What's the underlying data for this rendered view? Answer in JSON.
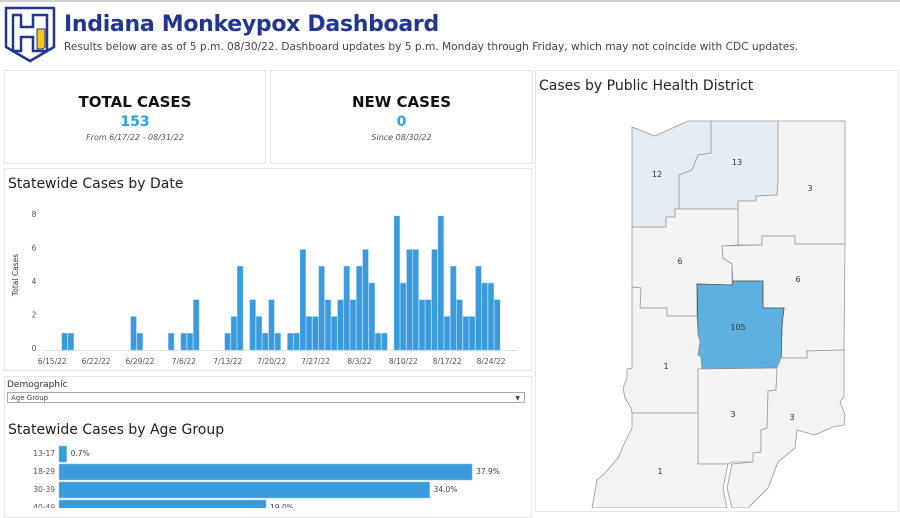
{
  "header": {
    "title": "Indiana Monkeypox Dashboard",
    "subtitle": "Results below are as of 5 p.m. 08/30/22. Dashboard updates by 5 p.m. Monday through Friday, which may not coincide with CDC updates.",
    "logo_text": "IN"
  },
  "kpis": {
    "total": {
      "label": "TOTAL CASES",
      "value": "153",
      "note": "From 6/17/22 - 08/31/22"
    },
    "new": {
      "label": "NEW CASES",
      "value": "0",
      "note": "Since 08/30/22"
    }
  },
  "colors": {
    "accent": "#29a3e0",
    "bar": "#3a9bdc",
    "title": "#23368f",
    "map_high": "#5eb0e0",
    "map_mid": "#e4ecf3",
    "map_low": "#f3f3f3"
  },
  "chart_data": [
    {
      "type": "bar",
      "title": "Statewide Cases by Date",
      "ylabel": "Total Cases",
      "xlabel": "",
      "ylim": [
        0,
        8
      ],
      "yticks": [
        "0",
        "2",
        "4",
        "6",
        "8"
      ],
      "xticks": [
        "6/15/22",
        "6/22/22",
        "6/29/22",
        "7/6/22",
        "7/13/22",
        "7/20/22",
        "7/27/22",
        "8/3/22",
        "8/10/22",
        "8/17/22",
        "8/24/22"
      ],
      "grid": false,
      "points": [
        {
          "date": "6/17/22",
          "cases": 1
        },
        {
          "date": "6/18/22",
          "cases": 1
        },
        {
          "date": "6/28/22",
          "cases": 2
        },
        {
          "date": "6/29/22",
          "cases": 1
        },
        {
          "date": "7/4/22",
          "cases": 1
        },
        {
          "date": "7/6/22",
          "cases": 1
        },
        {
          "date": "7/7/22",
          "cases": 1
        },
        {
          "date": "7/8/22",
          "cases": 3
        },
        {
          "date": "7/13/22",
          "cases": 1
        },
        {
          "date": "7/14/22",
          "cases": 2
        },
        {
          "date": "7/15/22",
          "cases": 5
        },
        {
          "date": "7/17/22",
          "cases": 3
        },
        {
          "date": "7/18/22",
          "cases": 2
        },
        {
          "date": "7/19/22",
          "cases": 1
        },
        {
          "date": "7/20/22",
          "cases": 3
        },
        {
          "date": "7/21/22",
          "cases": 1
        },
        {
          "date": "7/23/22",
          "cases": 1
        },
        {
          "date": "7/24/22",
          "cases": 1
        },
        {
          "date": "7/25/22",
          "cases": 6
        },
        {
          "date": "7/26/22",
          "cases": 2
        },
        {
          "date": "7/27/22",
          "cases": 2
        },
        {
          "date": "7/28/22",
          "cases": 5
        },
        {
          "date": "7/29/22",
          "cases": 3
        },
        {
          "date": "7/30/22",
          "cases": 2
        },
        {
          "date": "7/31/22",
          "cases": 3
        },
        {
          "date": "8/1/22",
          "cases": 5
        },
        {
          "date": "8/2/22",
          "cases": 3
        },
        {
          "date": "8/3/22",
          "cases": 5
        },
        {
          "date": "8/4/22",
          "cases": 6
        },
        {
          "date": "8/5/22",
          "cases": 4
        },
        {
          "date": "8/6/22",
          "cases": 1
        },
        {
          "date": "8/7/22",
          "cases": 1
        },
        {
          "date": "8/9/22",
          "cases": 8
        },
        {
          "date": "8/10/22",
          "cases": 4
        },
        {
          "date": "8/11/22",
          "cases": 6
        },
        {
          "date": "8/12/22",
          "cases": 6
        },
        {
          "date": "8/13/22",
          "cases": 3
        },
        {
          "date": "8/14/22",
          "cases": 3
        },
        {
          "date": "8/15/22",
          "cases": 6
        },
        {
          "date": "8/16/22",
          "cases": 8
        },
        {
          "date": "8/17/22",
          "cases": 2
        },
        {
          "date": "8/18/22",
          "cases": 5
        },
        {
          "date": "8/19/22",
          "cases": 3
        },
        {
          "date": "8/20/22",
          "cases": 2
        },
        {
          "date": "8/21/22",
          "cases": 2
        },
        {
          "date": "8/22/22",
          "cases": 5
        },
        {
          "date": "8/23/22",
          "cases": 4
        },
        {
          "date": "8/24/22",
          "cases": 4
        },
        {
          "date": "8/25/22",
          "cases": 3
        }
      ]
    },
    {
      "type": "bar",
      "orientation": "horizontal",
      "title": "Statewide Cases by Age Group",
      "categories": [
        "13-17",
        "18-29",
        "30-39",
        "40-49"
      ],
      "values": [
        0.7,
        37.9,
        34.0,
        19.0
      ],
      "labels": [
        "0.7%",
        "37.9%",
        "34.0%",
        "19.0%"
      ]
    }
  ],
  "demographic": {
    "label": "Demographic",
    "selected": "Age Group"
  },
  "map": {
    "title": "Cases by Public Health District",
    "districts": [
      {
        "id": "d1",
        "cases": "12"
      },
      {
        "id": "d2",
        "cases": "13"
      },
      {
        "id": "d3",
        "cases": "3"
      },
      {
        "id": "d4",
        "cases": "6"
      },
      {
        "id": "d5",
        "cases": "6"
      },
      {
        "id": "d6",
        "cases": "105"
      },
      {
        "id": "d7",
        "cases": "1"
      },
      {
        "id": "d8",
        "cases": "3"
      },
      {
        "id": "d9",
        "cases": "3"
      },
      {
        "id": "d10",
        "cases": "1"
      }
    ]
  }
}
